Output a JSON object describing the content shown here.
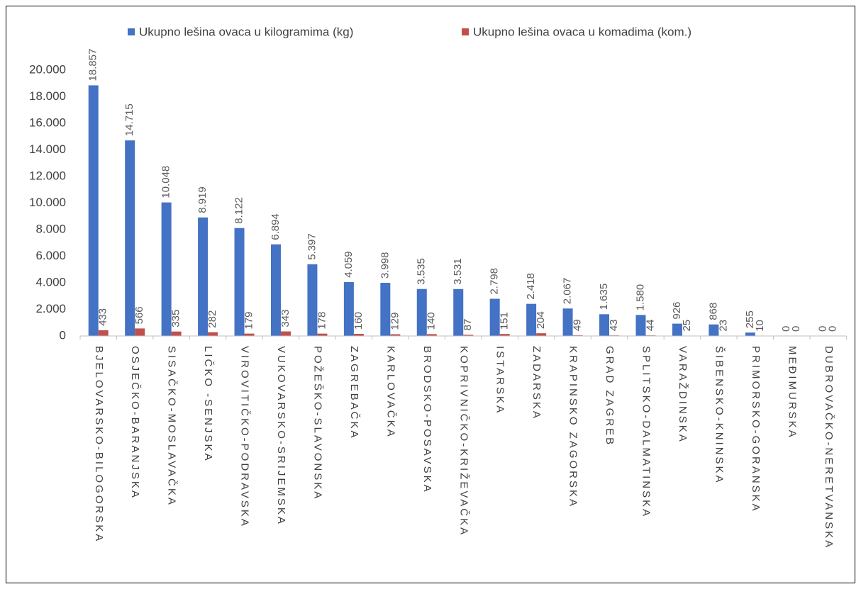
{
  "chart_data": {
    "type": "bar",
    "categories": [
      "BJELOVARSKO-BILOGORSKA",
      "OSJEČKO-BARANJSKA",
      "SISAČKO-MOSLAVAČKA",
      "LIČKO -SENJSKA",
      "VIROVITIČKO-PODRAVSKA",
      "VUKOVARSKO-SRIJEMSKA",
      "POŽEŠKO-SLAVONSKA",
      "ZAGREBAČKA",
      "KARLOVAČKA",
      "BRODSKO-POSAVSKA",
      "KOPRIVNIČKO-KRIŽEVAČKA",
      "ISTARSKA",
      "ZADARSKA",
      "KRAPINSKO ZAGORSKA",
      "GRAD ZAGREB",
      "SPLITSKO-DALMATINSKA",
      "VARAŽDINSKA",
      "ŠIBENSKO-KNINSKA",
      "PRIMORSKO-GORANSKA",
      "MEĐIMURSKA",
      "DUBROVAČKO-NERETVANSKA"
    ],
    "series": [
      {
        "name": "Ukupno lešina ovaca u kilogramima (kg)",
        "color": "#4472c4",
        "values": [
          18857,
          14715,
          10048,
          8919,
          8122,
          6894,
          5397,
          4059,
          3998,
          3535,
          3531,
          2798,
          2418,
          2067,
          1635,
          1580,
          926,
          868,
          255,
          0,
          0
        ],
        "value_labels": [
          "18.857",
          "14.715",
          "10.048",
          "8.919",
          "8.122",
          "6.894",
          "5.397",
          "4.059",
          "3.998",
          "3.535",
          "3.531",
          "2.798",
          "2.418",
          "2.067",
          "1.635",
          "1.580",
          "926",
          "868",
          "255",
          "0",
          "0"
        ]
      },
      {
        "name": "Ukupno lešina ovaca u komadima (kom.)",
        "color": "#c0504d",
        "values": [
          433,
          566,
          335,
          282,
          179,
          343,
          178,
          160,
          129,
          140,
          87,
          151,
          204,
          49,
          43,
          44,
          25,
          23,
          10,
          0,
          0
        ]
      }
    ],
    "ylim": [
      0,
      20000
    ],
    "yticks": [
      0,
      {
        "value": 2000,
        "label": "2.000"
      },
      {
        "value": 4000,
        "label": "4.000"
      },
      {
        "value": 6000,
        "label": "6.000"
      },
      {
        "value": 8000,
        "label": "8.000"
      },
      {
        "value": 10000,
        "label": "10.000"
      },
      {
        "value": 12000,
        "label": "12.000"
      },
      {
        "value": 14000,
        "label": "14.000"
      },
      {
        "value": 16000,
        "label": "16.000"
      },
      {
        "value": 18000,
        "label": "18.000"
      },
      {
        "value": 20000,
        "label": "20.000"
      }
    ],
    "grid": false,
    "legend": "top"
  }
}
